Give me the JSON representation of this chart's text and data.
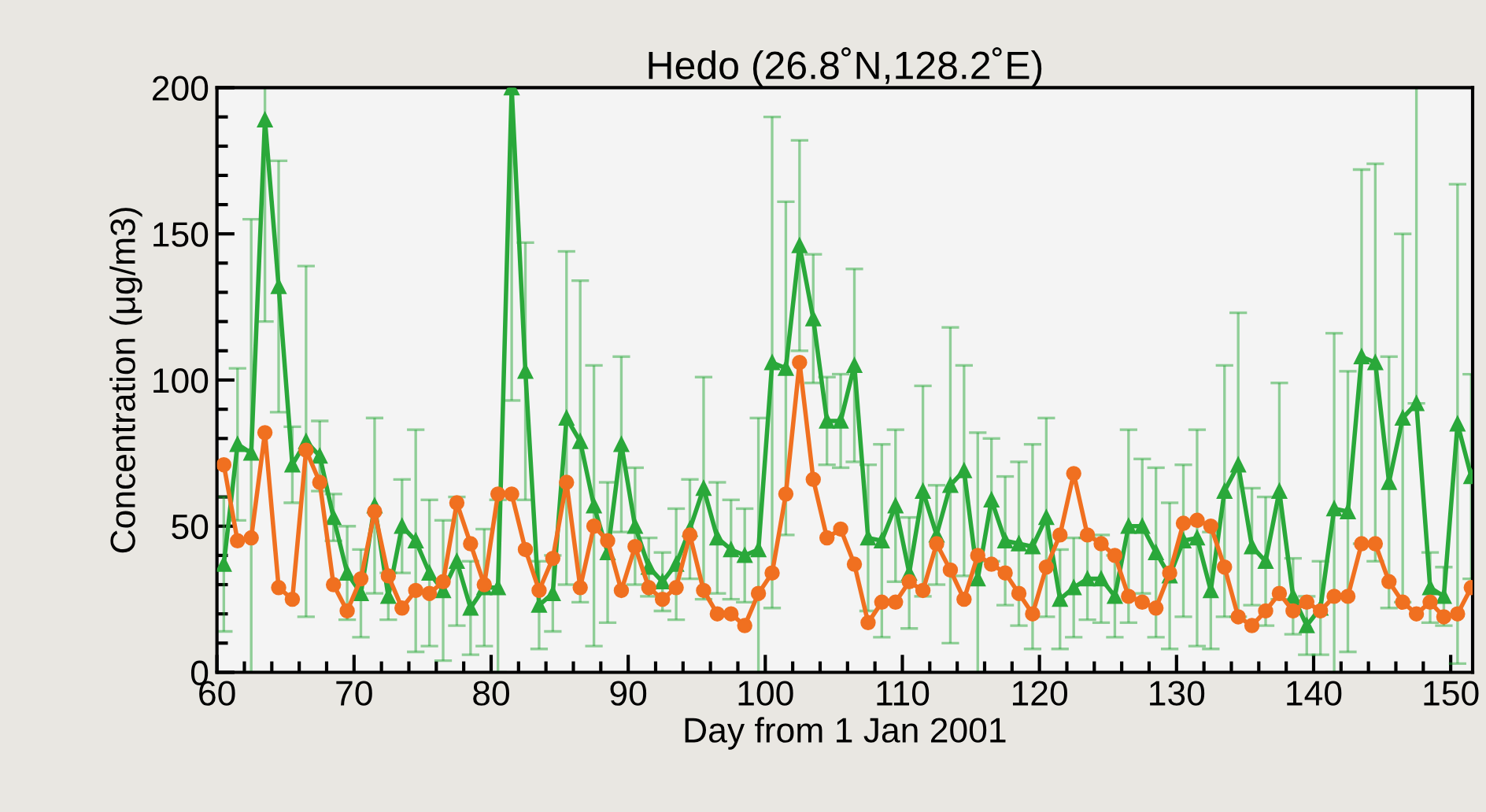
{
  "chart_data": {
    "type": "line",
    "title": "Hedo (26.8˚N,128.2˚E)",
    "xlabel": "Day from 1 Jan 2001",
    "ylabel": "Concentration (μg/m3)",
    "xlim": [
      60,
      151.6
    ],
    "xticks": [
      60,
      70,
      80,
      90,
      100,
      110,
      120,
      130,
      140,
      150
    ],
    "ylim": [
      0,
      200
    ],
    "yticks": [
      0,
      50,
      100,
      150,
      200
    ],
    "grid": false,
    "x": [
      60.5,
      61.5,
      62.5,
      63.5,
      64.5,
      65.5,
      66.5,
      67.5,
      68.5,
      69.5,
      70.5,
      71.5,
      72.5,
      73.5,
      74.5,
      75.5,
      76.5,
      77.5,
      78.5,
      79.5,
      80.5,
      81.5,
      82.5,
      83.5,
      84.5,
      85.5,
      86.5,
      87.5,
      88.5,
      89.5,
      90.5,
      91.5,
      92.5,
      93.5,
      94.5,
      95.5,
      96.5,
      97.5,
      98.5,
      99.5,
      100.5,
      101.5,
      102.5,
      103.5,
      104.5,
      105.5,
      106.5,
      107.5,
      108.5,
      109.5,
      110.5,
      111.5,
      112.5,
      113.5,
      114.5,
      115.5,
      116.5,
      117.5,
      118.5,
      119.5,
      120.5,
      121.5,
      122.5,
      123.5,
      124.5,
      125.5,
      126.5,
      127.5,
      128.5,
      129.5,
      130.5,
      131.5,
      132.5,
      133.5,
      134.5,
      135.5,
      136.5,
      137.5,
      138.5,
      139.5,
      140.5,
      141.5,
      142.5,
      143.5,
      144.5,
      145.5,
      146.5,
      147.5,
      148.5,
      149.5,
      150.5,
      151.5
    ],
    "series": [
      {
        "color": "#2aa83a",
        "marker": "triangle",
        "values": [
          37,
          78,
          75,
          189,
          132,
          71,
          79,
          74,
          53,
          34,
          27,
          57,
          26,
          50,
          45,
          34,
          28,
          38,
          22,
          29,
          29,
          200,
          103,
          23,
          27,
          87,
          79,
          57,
          41,
          78,
          50,
          36,
          31,
          37,
          49,
          63,
          46,
          42,
          40,
          42,
          106,
          104,
          146,
          121,
          86,
          86,
          105,
          46,
          45,
          57,
          34,
          62,
          47,
          64,
          69,
          32,
          59,
          45,
          44,
          43,
          53,
          25,
          29,
          32,
          32,
          26,
          50,
          50,
          41,
          33,
          45,
          46,
          28,
          62,
          71,
          43,
          38,
          62,
          26,
          16,
          22,
          56,
          55,
          108,
          106,
          65,
          87,
          92,
          29,
          26,
          85,
          67
        ],
        "errors": [
          23,
          26,
          [
            0,
            155
          ],
          [
            120,
            200
          ],
          43,
          13,
          60,
          12,
          8,
          16,
          15,
          30,
          8,
          16,
          38,
          25,
          24,
          22,
          16,
          20,
          [
            0,
            59
          ],
          [
            93,
            200
          ],
          44,
          15,
          13,
          57,
          55,
          48,
          24,
          30,
          20,
          10,
          10,
          19,
          17,
          38,
          19,
          17,
          16,
          [
            0,
            87
          ],
          84,
          57,
          36,
          22,
          15,
          16,
          33,
          25,
          33,
          26,
          19,
          36,
          17,
          54,
          36,
          [
            0,
            82
          ],
          21,
          22,
          28,
          35,
          34,
          17,
          17,
          14,
          15,
          14,
          33,
          23,
          29,
          25,
          26,
          37,
          20,
          43,
          52,
          20,
          22,
          37,
          13,
          10,
          16,
          [
            0,
            116
          ],
          48,
          64,
          68,
          43,
          63,
          [
            92,
            200
          ],
          12,
          10,
          82,
          35
        ]
      },
      {
        "color": "#f07020",
        "marker": "circle",
        "values": [
          71,
          45,
          46,
          82,
          29,
          25,
          76,
          65,
          30,
          21,
          32,
          55,
          33,
          22,
          28,
          27,
          31,
          58,
          44,
          30,
          61,
          61,
          42,
          28,
          39,
          65,
          29,
          50,
          45,
          28,
          43,
          29,
          25,
          29,
          47,
          28,
          20,
          20,
          16,
          27,
          34,
          61,
          106,
          66,
          46,
          49,
          37,
          17,
          24,
          24,
          31,
          28,
          44,
          35,
          25,
          40,
          37,
          34,
          27,
          20,
          36,
          47,
          68,
          47,
          44,
          40,
          26,
          24,
          22,
          34,
          51,
          52,
          50,
          36,
          19,
          16,
          21,
          27,
          21,
          24,
          21,
          26,
          26,
          44,
          44,
          31,
          24,
          20,
          24,
          19,
          20,
          29
        ]
      }
    ]
  }
}
